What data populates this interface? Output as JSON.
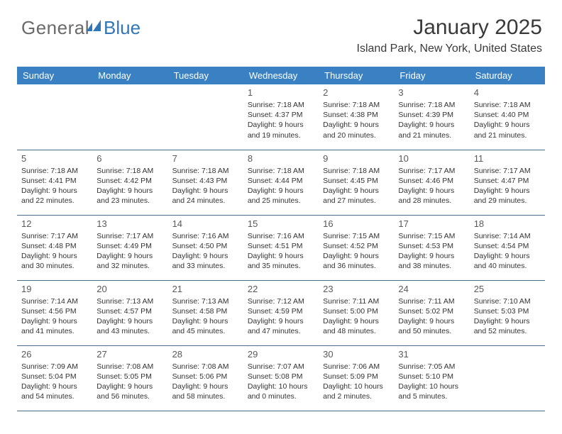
{
  "logo": {
    "word1": "General",
    "word2": "Blue"
  },
  "header": {
    "month_title": "January 2025",
    "location": "Island Park, New York, United States"
  },
  "colors": {
    "header_bg": "#3a81c4",
    "header_text": "#ffffff",
    "row_border": "#4a6a8a",
    "logo_gray": "#6a6a6a",
    "logo_blue": "#2f77b8",
    "body_text": "#333333",
    "daynum": "#5a5a5a"
  },
  "day_names": [
    "Sunday",
    "Monday",
    "Tuesday",
    "Wednesday",
    "Thursday",
    "Friday",
    "Saturday"
  ],
  "weeks": [
    [
      null,
      null,
      null,
      {
        "n": "1",
        "sunrise": "7:18 AM",
        "sunset": "4:37 PM",
        "daylight": "9 hours and 19 minutes."
      },
      {
        "n": "2",
        "sunrise": "7:18 AM",
        "sunset": "4:38 PM",
        "daylight": "9 hours and 20 minutes."
      },
      {
        "n": "3",
        "sunrise": "7:18 AM",
        "sunset": "4:39 PM",
        "daylight": "9 hours and 21 minutes."
      },
      {
        "n": "4",
        "sunrise": "7:18 AM",
        "sunset": "4:40 PM",
        "daylight": "9 hours and 21 minutes."
      }
    ],
    [
      {
        "n": "5",
        "sunrise": "7:18 AM",
        "sunset": "4:41 PM",
        "daylight": "9 hours and 22 minutes."
      },
      {
        "n": "6",
        "sunrise": "7:18 AM",
        "sunset": "4:42 PM",
        "daylight": "9 hours and 23 minutes."
      },
      {
        "n": "7",
        "sunrise": "7:18 AM",
        "sunset": "4:43 PM",
        "daylight": "9 hours and 24 minutes."
      },
      {
        "n": "8",
        "sunrise": "7:18 AM",
        "sunset": "4:44 PM",
        "daylight": "9 hours and 25 minutes."
      },
      {
        "n": "9",
        "sunrise": "7:18 AM",
        "sunset": "4:45 PM",
        "daylight": "9 hours and 27 minutes."
      },
      {
        "n": "10",
        "sunrise": "7:17 AM",
        "sunset": "4:46 PM",
        "daylight": "9 hours and 28 minutes."
      },
      {
        "n": "11",
        "sunrise": "7:17 AM",
        "sunset": "4:47 PM",
        "daylight": "9 hours and 29 minutes."
      }
    ],
    [
      {
        "n": "12",
        "sunrise": "7:17 AM",
        "sunset": "4:48 PM",
        "daylight": "9 hours and 30 minutes."
      },
      {
        "n": "13",
        "sunrise": "7:17 AM",
        "sunset": "4:49 PM",
        "daylight": "9 hours and 32 minutes."
      },
      {
        "n": "14",
        "sunrise": "7:16 AM",
        "sunset": "4:50 PM",
        "daylight": "9 hours and 33 minutes."
      },
      {
        "n": "15",
        "sunrise": "7:16 AM",
        "sunset": "4:51 PM",
        "daylight": "9 hours and 35 minutes."
      },
      {
        "n": "16",
        "sunrise": "7:15 AM",
        "sunset": "4:52 PM",
        "daylight": "9 hours and 36 minutes."
      },
      {
        "n": "17",
        "sunrise": "7:15 AM",
        "sunset": "4:53 PM",
        "daylight": "9 hours and 38 minutes."
      },
      {
        "n": "18",
        "sunrise": "7:14 AM",
        "sunset": "4:54 PM",
        "daylight": "9 hours and 40 minutes."
      }
    ],
    [
      {
        "n": "19",
        "sunrise": "7:14 AM",
        "sunset": "4:56 PM",
        "daylight": "9 hours and 41 minutes."
      },
      {
        "n": "20",
        "sunrise": "7:13 AM",
        "sunset": "4:57 PM",
        "daylight": "9 hours and 43 minutes."
      },
      {
        "n": "21",
        "sunrise": "7:13 AM",
        "sunset": "4:58 PM",
        "daylight": "9 hours and 45 minutes."
      },
      {
        "n": "22",
        "sunrise": "7:12 AM",
        "sunset": "4:59 PM",
        "daylight": "9 hours and 47 minutes."
      },
      {
        "n": "23",
        "sunrise": "7:11 AM",
        "sunset": "5:00 PM",
        "daylight": "9 hours and 48 minutes."
      },
      {
        "n": "24",
        "sunrise": "7:11 AM",
        "sunset": "5:02 PM",
        "daylight": "9 hours and 50 minutes."
      },
      {
        "n": "25",
        "sunrise": "7:10 AM",
        "sunset": "5:03 PM",
        "daylight": "9 hours and 52 minutes."
      }
    ],
    [
      {
        "n": "26",
        "sunrise": "7:09 AM",
        "sunset": "5:04 PM",
        "daylight": "9 hours and 54 minutes."
      },
      {
        "n": "27",
        "sunrise": "7:08 AM",
        "sunset": "5:05 PM",
        "daylight": "9 hours and 56 minutes."
      },
      {
        "n": "28",
        "sunrise": "7:08 AM",
        "sunset": "5:06 PM",
        "daylight": "9 hours and 58 minutes."
      },
      {
        "n": "29",
        "sunrise": "7:07 AM",
        "sunset": "5:08 PM",
        "daylight": "10 hours and 0 minutes."
      },
      {
        "n": "30",
        "sunrise": "7:06 AM",
        "sunset": "5:09 PM",
        "daylight": "10 hours and 2 minutes."
      },
      {
        "n": "31",
        "sunrise": "7:05 AM",
        "sunset": "5:10 PM",
        "daylight": "10 hours and 5 minutes."
      },
      null
    ]
  ],
  "labels": {
    "sunrise": "Sunrise:",
    "sunset": "Sunset:",
    "daylight": "Daylight:"
  }
}
